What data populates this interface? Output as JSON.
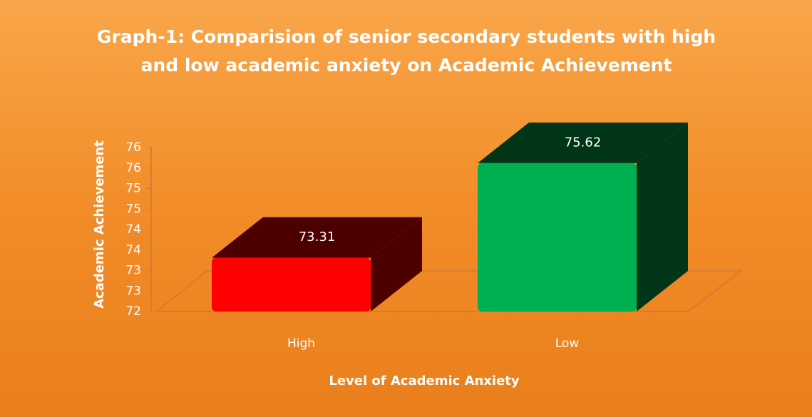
{
  "chart_data": {
    "type": "bar3d",
    "title": "Graph-1: Comparision of senior secondary students with high and low academic anxiety on Academic Achievement",
    "xlabel": "Level of Academic Anxiety",
    "ylabel": "Academic Achievement",
    "categories": [
      "High",
      "Low"
    ],
    "values": [
      73.31,
      75.62
    ],
    "colors": [
      "#ff0000",
      "#00b050"
    ],
    "ylim": [
      72,
      76
    ],
    "yticks": [
      72,
      {
        "value": 72.5,
        "label": "73"
      },
      73,
      {
        "value": 73.5,
        "label": "74"
      },
      74,
      {
        "value": 74.5,
        "label": "75"
      },
      75,
      {
        "value": 75.5,
        "label": "76"
      },
      76
    ]
  }
}
